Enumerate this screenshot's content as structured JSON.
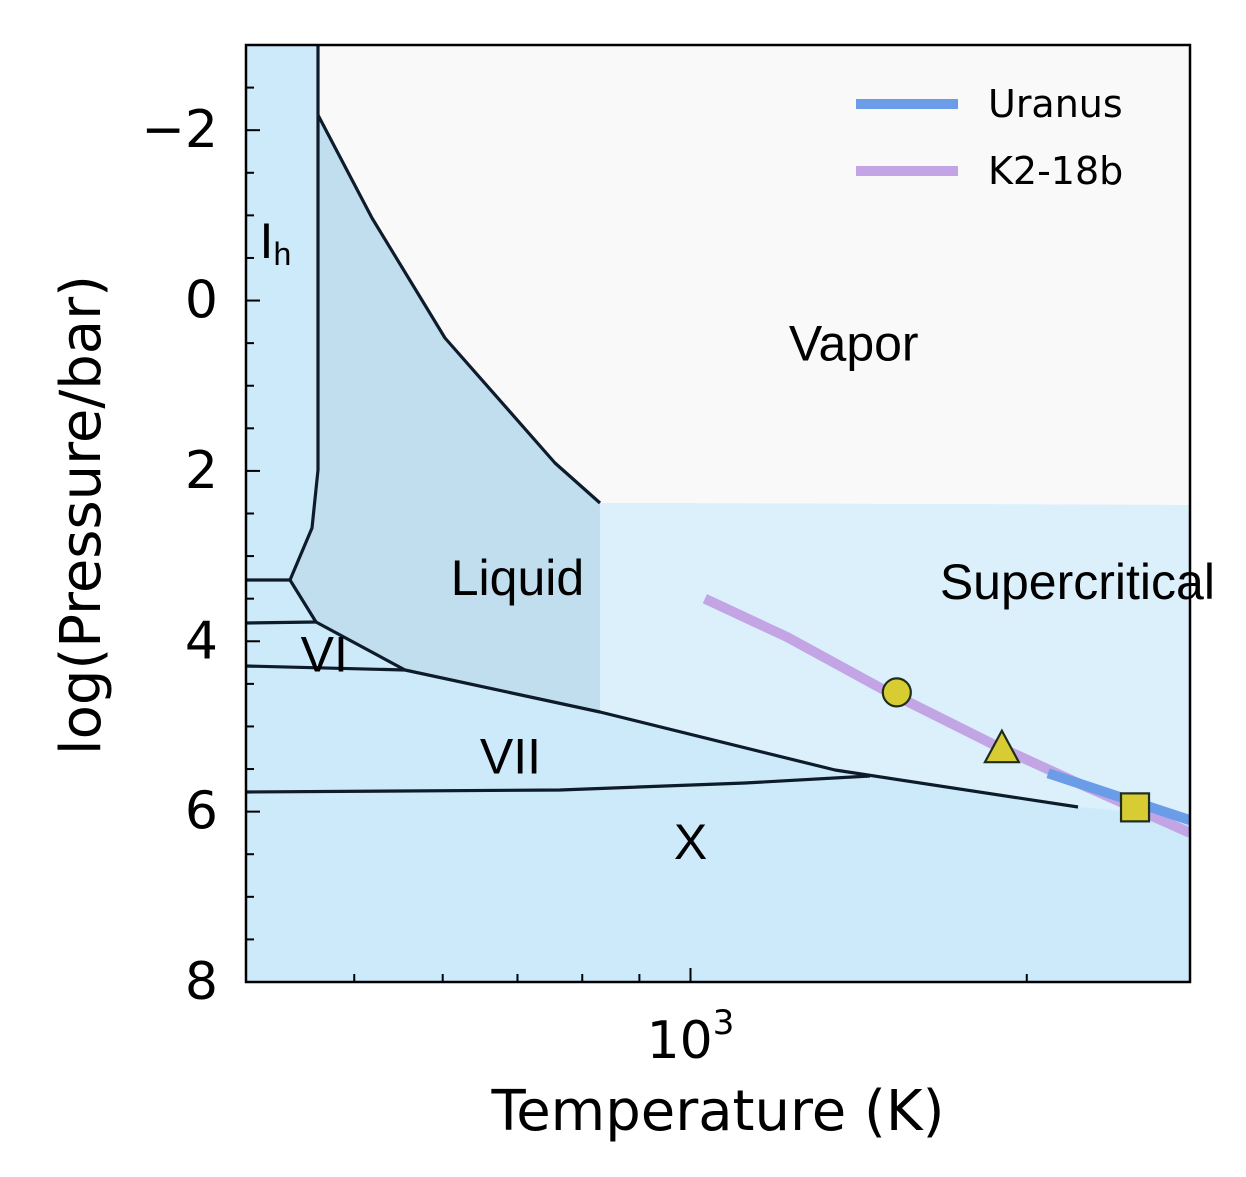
{
  "chart_data": {
    "type": "line",
    "title": "",
    "xlabel": "Temperature (K)",
    "ylabel": "log(Pressure/bar)",
    "x_scale": "log",
    "x_range_K": [
      400,
      2800
    ],
    "y_range": [
      -3,
      8
    ],
    "y_inverted": true,
    "x_ticks": [
      {
        "value": 1000,
        "base": "10",
        "exponent": "3"
      }
    ],
    "y_ticks": [
      {
        "value": -2,
        "label": "−2"
      },
      {
        "value": 0,
        "label": "0"
      },
      {
        "value": 2,
        "label": "2"
      },
      {
        "value": 4,
        "label": "4"
      },
      {
        "value": 6,
        "label": "6"
      },
      {
        "value": 8,
        "label": "8"
      }
    ],
    "legend_position": "top-right",
    "series": [
      {
        "name": "Uranus",
        "color": "#6a9ce8",
        "x": [
          2090,
          2800
        ],
        "y": [
          5.55,
          6.1
        ]
      },
      {
        "name": "K2-18b",
        "color": "#c3a4e4",
        "x": [
          1030,
          1220,
          1480,
          1860,
          2210,
          2800
        ],
        "y": [
          3.5,
          3.95,
          4.55,
          5.2,
          5.65,
          6.25
        ]
      }
    ],
    "markers": [
      {
        "shape": "circle",
        "x": 1530,
        "y": 4.6,
        "color": "#d8cc33"
      },
      {
        "shape": "triangle",
        "x": 1900,
        "y": 5.25,
        "color": "#d8cc33"
      },
      {
        "shape": "square",
        "x": 2500,
        "y": 5.95,
        "color": "#d8cc33"
      }
    ],
    "regions": [
      {
        "id": "ice-ih",
        "label_main": "I",
        "label_sub": "h",
        "lx": 425,
        "ly": -0.65
      },
      {
        "id": "liquid",
        "label": "Liquid",
        "lx": 700,
        "ly": 3.3
      },
      {
        "id": "vapor",
        "label": "Vapor",
        "lx": 1400,
        "ly": 0.55
      },
      {
        "id": "supercritical",
        "label": "Supercritical",
        "lx": 2220,
        "ly": 3.35
      },
      {
        "id": "ice-vi",
        "label": "VI",
        "lx": 470,
        "ly": 4.2
      },
      {
        "id": "ice-vii",
        "label": "VII",
        "lx": 690,
        "ly": 5.4
      },
      {
        "id": "ice-x",
        "label": "X",
        "lx": 1000,
        "ly": 6.4
      }
    ],
    "colors": {
      "ice": "#cdeafb",
      "liquid": "#c1deee",
      "vapor": "#f9f9f9",
      "supercritical": "#dbf0fb",
      "boundary": "#0d1b2a"
    }
  }
}
